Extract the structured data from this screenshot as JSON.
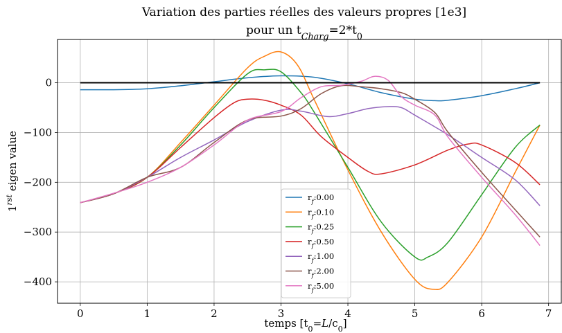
{
  "chart_data": {
    "type": "line",
    "title": [
      "Variation des parties réelles des valeurs propres [1e3]",
      "pour un t Charg=2*t0"
    ],
    "title_rich": [
      [
        {
          "t": "Variation des parties réelles des valeurs propres [1e3]"
        }
      ],
      [
        {
          "t": "pour un t"
        },
        {
          "t": "Charg",
          "sub": true,
          "italic": true
        },
        {
          "t": "=2*t"
        },
        {
          "t": "0",
          "sub": true
        }
      ]
    ],
    "xlabel": "temps [t0=L/c0]",
    "xlabel_rich": [
      {
        "t": "temps [t"
      },
      {
        "t": "0",
        "sub": true
      },
      {
        "t": "="
      },
      {
        "t": "L",
        "italic": true
      },
      {
        "t": "/c"
      },
      {
        "t": "0",
        "sub": true
      },
      {
        "t": "]"
      }
    ],
    "ylabel": "1rst eigen value",
    "ylabel_rich": [
      {
        "t": "1"
      },
      {
        "t": "rst",
        "sup": true,
        "italic": true
      },
      {
        "t": " eigen value"
      }
    ],
    "xlim": [
      -0.34,
      7.2
    ],
    "ylim": [
      -443,
      87
    ],
    "xticks": [
      0,
      1,
      2,
      3,
      4,
      5,
      6,
      7
    ],
    "yticks": [
      0,
      -100,
      -200,
      -300,
      -400
    ],
    "ytick_labels": [
      "0",
      "−100",
      "−200",
      "−300",
      "−400"
    ],
    "grid": true,
    "legend_placement": "lower-center",
    "reference_line": {
      "y": 0,
      "x": [
        0,
        6.87
      ],
      "color": "#000000"
    },
    "series": [
      {
        "name": "rf:0.00",
        "label_base": "r",
        "label_sub": "f",
        "label_val": ":0.00",
        "color": "#1f77b4",
        "x": [
          0,
          0.5,
          1,
          1.5,
          2,
          2.5,
          3,
          3.5,
          4,
          4.5,
          5,
          5.3,
          5.5,
          6,
          6.5,
          6.87
        ],
        "y": [
          -14,
          -14,
          -12,
          -6,
          2,
          10,
          14,
          11,
          -2,
          -20,
          -33,
          -36,
          -35,
          -26,
          -12,
          0
        ]
      },
      {
        "name": "rf:0.10",
        "label_base": "r",
        "label_sub": "f",
        "label_val": ":0.10",
        "color": "#ff7f0e",
        "x": [
          0,
          0.5,
          1,
          1.5,
          2,
          2.5,
          2.75,
          3,
          3.25,
          3.5,
          4,
          4.5,
          5,
          5.28,
          5.5,
          6,
          6.5,
          6.87
        ],
        "y": [
          -241,
          -223,
          -190,
          -120,
          -45,
          30,
          53,
          62,
          35,
          -35,
          -175,
          -300,
          -395,
          -415,
          -400,
          -310,
          -180,
          -85
        ]
      },
      {
        "name": "rf:0.25",
        "label_base": "r",
        "label_sub": "f",
        "label_val": ":0.25",
        "color": "#2ca02c",
        "x": [
          0,
          0.5,
          1,
          1.5,
          2,
          2.5,
          2.75,
          3,
          3.3,
          3.5,
          4,
          4.5,
          5,
          5.2,
          5.5,
          6,
          6.5,
          6.87
        ],
        "y": [
          -241,
          -223,
          -190,
          -125,
          -50,
          18,
          26,
          22,
          -20,
          -60,
          -170,
          -280,
          -350,
          -350,
          -320,
          -225,
          -130,
          -85
        ]
      },
      {
        "name": "rf:0.50",
        "label_base": "r",
        "label_sub": "f",
        "label_val": ":0.50",
        "color": "#d62728",
        "x": [
          0,
          0.5,
          1,
          1.5,
          2,
          2.3,
          2.5,
          2.75,
          3,
          3.3,
          3.6,
          4,
          4.3,
          4.5,
          5,
          5.5,
          5.8,
          6,
          6.5,
          6.87
        ],
        "y": [
          -241,
          -223,
          -190,
          -130,
          -70,
          -40,
          -33,
          -35,
          -45,
          -65,
          -108,
          -150,
          -178,
          -183,
          -165,
          -135,
          -123,
          -125,
          -160,
          -205
        ]
      },
      {
        "name": "rf:1.00",
        "label_base": "r",
        "label_sub": "f",
        "label_val": ":1.00",
        "color": "#9467bd",
        "x": [
          0,
          0.5,
          1,
          1.5,
          2,
          2.5,
          3,
          3.3,
          3.7,
          4,
          4.3,
          4.6,
          4.8,
          5,
          5.5,
          6,
          6.5,
          6.87
        ],
        "y": [
          -241,
          -223,
          -190,
          -150,
          -115,
          -78,
          -55,
          -57,
          -68,
          -62,
          -52,
          -48,
          -50,
          -65,
          -105,
          -150,
          -195,
          -247
        ]
      },
      {
        "name": "rf:2.00",
        "label_base": "r",
        "label_sub": "f",
        "label_val": ":2.00",
        "color": "#8c564b",
        "x": [
          0,
          0.5,
          1,
          1.5,
          2,
          2.5,
          3,
          3.3,
          3.6,
          3.9,
          4.2,
          4.5,
          4.8,
          5,
          5.3,
          5.5,
          6,
          6.5,
          6.87
        ],
        "y": [
          -241,
          -223,
          -190,
          -170,
          -120,
          -75,
          -67,
          -52,
          -22,
          -6,
          -8,
          -12,
          -20,
          -33,
          -60,
          -100,
          -180,
          -255,
          -310
        ]
      },
      {
        "name": "rf:5.00",
        "label_base": "r",
        "label_sub": "f",
        "label_val": ":5.00",
        "color": "#e377c2",
        "x": [
          0,
          0.5,
          1,
          1.5,
          2,
          2.5,
          3,
          3.3,
          3.6,
          3.9,
          4.2,
          4.4,
          4.6,
          4.8,
          5,
          5.3,
          5.5,
          6,
          6.5,
          6.87
        ],
        "y": [
          -241,
          -222,
          -200,
          -170,
          -125,
          -75,
          -58,
          -30,
          -8,
          -5,
          3,
          13,
          5,
          -28,
          -45,
          -65,
          -110,
          -190,
          -265,
          -327
        ]
      }
    ]
  }
}
